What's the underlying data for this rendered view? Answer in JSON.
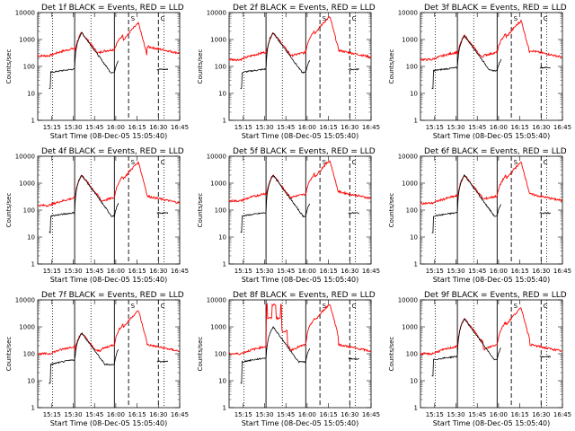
{
  "chart_data": {
    "type": "line",
    "layout": "3x3 grid",
    "x_ticks": [
      "15:15",
      "15:30",
      "15:45",
      "16:00",
      "16:15",
      "16:30",
      "16:45"
    ],
    "y_ticks": [
      "1",
      "10",
      "100",
      "1000",
      "10000"
    ],
    "yscale": "log",
    "ylim": [
      1,
      10000
    ],
    "xlim_minutes": [
      0,
      100
    ],
    "ylabel": "Counts/sec",
    "xlabel": "Start Time (08-Dec-05 15:05:40)",
    "markers": {
      "dotted": [
        10.5,
        37.5,
        89
      ],
      "solid": [
        26,
        54
      ],
      "dashed": [
        64,
        85
      ],
      "letter_S": {
        "x": 67,
        "text": "S"
      },
      "letter_C": {
        "x": 88,
        "text": "C"
      }
    },
    "series_colors": {
      "events": "#000000",
      "lld": "#ff0000"
    },
    "panels": [
      {
        "title": "Det 1f BLACK = Events, RED = LLD",
        "black_peak": 1800,
        "red_peak": 4000,
        "red_base": 250,
        "black_base": 60,
        "black_pre_offset": 15
      },
      {
        "title": "Det 2f BLACK = Events, RED = LLD",
        "black_peak": 1800,
        "red_peak": 7000,
        "red_base": 180,
        "black_base": 60,
        "black_pre_offset": 15
      },
      {
        "title": "Det 3f BLACK = Events, RED = LLD",
        "black_peak": 1400,
        "red_peak": 5000,
        "red_base": 180,
        "black_base": 70,
        "black_pre_offset": 15
      },
      {
        "title": "Det 4f BLACK = Events, RED = LLD",
        "black_peak": 2000,
        "red_peak": 6000,
        "red_base": 150,
        "black_base": 60,
        "black_pre_offset": 15
      },
      {
        "title": "Det 5f BLACK = Events, RED = LLD",
        "black_peak": 2000,
        "red_peak": 7000,
        "red_base": 220,
        "black_base": 60,
        "black_pre_offset": 15
      },
      {
        "title": "Det 6f BLACK = Events, RED = LLD",
        "black_peak": 2000,
        "red_peak": 6000,
        "red_base": 180,
        "black_base": 60,
        "black_pre_offset": 15
      },
      {
        "title": "Det 7f BLACK = Events, RED = LLD",
        "black_peak": 600,
        "red_peak": 4000,
        "red_base": 100,
        "black_base": 40,
        "black_pre_offset": 8
      },
      {
        "title": "Det 8f BLACK = Events, RED = LLD",
        "black_peak": 1000,
        "red_peak": 7000,
        "red_base": 100,
        "black_base": 50,
        "black_pre_offset": 8,
        "spiky": true
      },
      {
        "title": "Det 9f BLACK = Events, RED = LLD",
        "black_peak": 2000,
        "red_peak": 5000,
        "red_base": 100,
        "black_base": 60,
        "black_pre_offset": 15
      }
    ],
    "grid": false,
    "legend": "in title"
  }
}
